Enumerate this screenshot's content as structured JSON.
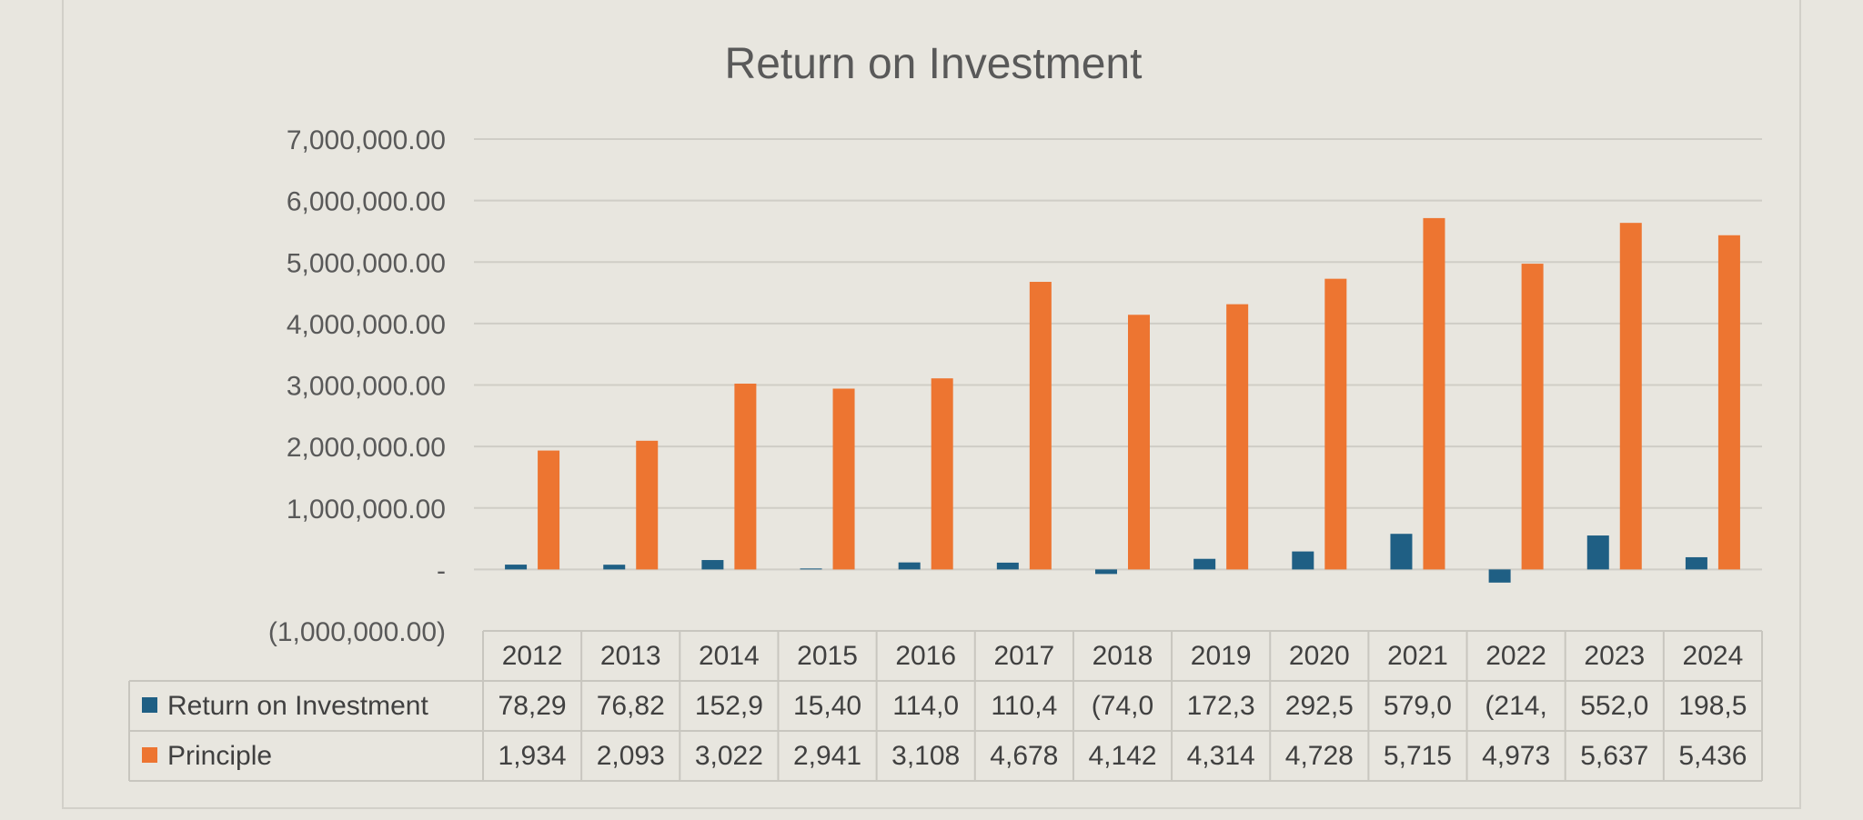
{
  "chart_data": {
    "type": "bar",
    "title": "Return on Investment",
    "categories": [
      "2012",
      "2013",
      "2014",
      "2015",
      "2016",
      "2017",
      "2018",
      "2019",
      "2020",
      "2021",
      "2022",
      "2023",
      "2024"
    ],
    "series": [
      {
        "name": "Return on Investment",
        "color": "#1f5f84",
        "values": [
          78290,
          76820,
          152900,
          15400,
          114000,
          110400,
          -74000,
          172300,
          292500,
          579000,
          -214000,
          552000,
          198500
        ],
        "table_labels": [
          "78,29",
          "76,82",
          "152,9",
          "15,40",
          "114,0",
          "110,4",
          "(74,0",
          "172,3",
          "292,5",
          "579,0",
          "(214,",
          "552,0",
          "198,5"
        ]
      },
      {
        "name": "Principle",
        "color": "#ed7531",
        "values": [
          1934000,
          2093000,
          3022000,
          2941000,
          3108000,
          4678000,
          4142000,
          4314000,
          4728000,
          5715000,
          4973000,
          5637000,
          5436000
        ],
        "table_labels": [
          "1,934",
          "2,093",
          "3,022",
          "2,941",
          "3,108",
          "4,678",
          "4,142",
          "4,314",
          "4,728",
          "5,715",
          "4,973",
          "5,637",
          "5,436"
        ]
      }
    ],
    "ylim": [
      -1000000,
      7000000
    ],
    "ytick_labels": [
      "(1,000,000.00)",
      "-",
      "1,000,000.00",
      "2,000,000.00",
      "3,000,000.00",
      "4,000,000.00",
      "5,000,000.00",
      "6,000,000.00",
      "7,000,000.00"
    ],
    "grid": true,
    "legend": "data-table"
  }
}
